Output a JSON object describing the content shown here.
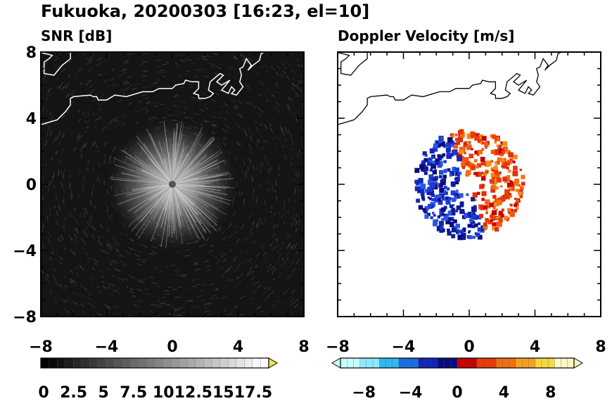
{
  "title": "Fukuoka, 20200303 [16:23, el=10]",
  "chart_data": [
    {
      "type": "heatmap",
      "title": "SNR [dB]",
      "xlim": [
        -8,
        8
      ],
      "ylim": [
        -8,
        8
      ],
      "x_ticks": [
        "−8",
        "−4",
        "0",
        "4",
        "8"
      ],
      "y_ticks": [
        "8",
        "4",
        "0",
        "−4",
        "−8"
      ],
      "background": "#141414",
      "coastline_color": "#ffffff",
      "echo": {
        "center": [
          0,
          0
        ],
        "radius": 3.6,
        "peak_snr": 17.5
      },
      "colorbar": {
        "ticks": [
          "0",
          "2.5",
          "5",
          "7.5",
          "10",
          "12.5",
          "15",
          "17.5"
        ],
        "range": [
          0,
          17.5
        ],
        "colors": [
          "#000000",
          "#ffffff"
        ],
        "extend": "max",
        "extend_color": "#f2e14c"
      }
    },
    {
      "type": "heatmap",
      "title": "Doppler Velocity [m/s]",
      "xlim": [
        -8,
        8
      ],
      "ylim": [
        -8,
        8
      ],
      "x_ticks": [
        "−8",
        "−4",
        "0",
        "4",
        "8"
      ],
      "y_ticks": [],
      "background": "#ffffff",
      "coastline_color": "#000000",
      "echo": {
        "center": [
          0,
          0
        ],
        "radius": 3.0,
        "negative_side": "west",
        "positive_side": "east"
      },
      "colorbar": {
        "ticks": [
          "−8",
          "−4",
          "0",
          "4",
          "8"
        ],
        "range": [
          -10,
          10
        ],
        "negative_colors": [
          "#c8ffff",
          "#8ee8ff",
          "#2fb7f0",
          "#1c6de0",
          "#1226b8",
          "#0a0a80"
        ],
        "positive_colors": [
          "#c80000",
          "#e83a0a",
          "#f07010",
          "#f5a020",
          "#f8d840",
          "#fff8c0"
        ],
        "extend": "both"
      }
    }
  ]
}
